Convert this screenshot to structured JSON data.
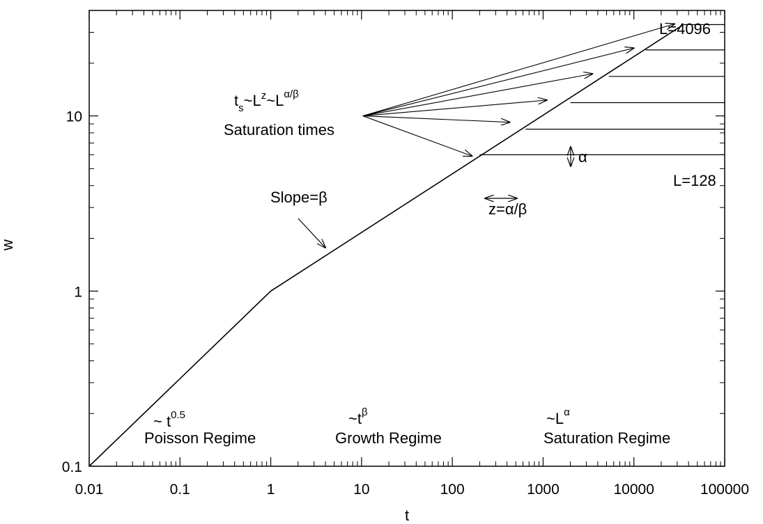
{
  "chart_data": {
    "type": "line",
    "title": "",
    "xlabel": "t",
    "ylabel": "w",
    "x_scale": "log",
    "y_scale": "log",
    "xlim": [
      0.01,
      100000
    ],
    "ylim": [
      0.1,
      40
    ],
    "grid": false,
    "x_ticks": [
      {
        "value": 0.01,
        "label": "0.01"
      },
      {
        "value": 0.1,
        "label": "0.1"
      },
      {
        "value": 1,
        "label": "1"
      },
      {
        "value": 10,
        "label": "10"
      },
      {
        "value": 100,
        "label": "100"
      },
      {
        "value": 1000,
        "label": "1000"
      },
      {
        "value": 10000,
        "label": "10000"
      },
      {
        "value": 100000,
        "label": "100000"
      }
    ],
    "y_ticks": [
      {
        "value": 0.1,
        "label": "0.1"
      },
      {
        "value": 1,
        "label": "1"
      },
      {
        "value": 10,
        "label": "10"
      }
    ],
    "growth_curve": {
      "x": [
        0.01,
        1,
        35000
      ],
      "y": [
        0.1,
        1,
        33.2
      ]
    },
    "saturation_lines": [
      {
        "w": 6.0,
        "t_start": 200
      },
      {
        "w": 8.4,
        "t_start": 640
      },
      {
        "w": 11.9,
        "t_start": 2000
      },
      {
        "w": 16.8,
        "t_start": 5300
      },
      {
        "w": 23.8,
        "t_start": 13500
      },
      {
        "w": 33.2,
        "t_start": 35000
      }
    ],
    "saturation_arrows": {
      "origin": {
        "t": 10,
        "w": 10
      },
      "targets": [
        {
          "t": 165,
          "w": 5.9
        },
        {
          "t": 430,
          "w": 9.2
        },
        {
          "t": 1100,
          "w": 12.3
        },
        {
          "t": 3500,
          "w": 17.4
        },
        {
          "t": 10000,
          "w": 24.4
        },
        {
          "t": 28000,
          "w": 33.5
        }
      ]
    },
    "annotations": {
      "top_line_label": "L=4096",
      "bottom_line_label": "L=128",
      "alpha_label": "α",
      "slope_label": "Slope=β",
      "z_label": "z=α/β",
      "saturation_times": "Saturation times",
      "ts_t": "t",
      "ts_s": "s",
      "ts_mid": "~L",
      "ts_z": "z",
      "ts_mid2": "~L",
      "ts_sup": "α/β",
      "poisson_tilde": "~ t",
      "poisson_sup": "0.5",
      "poisson_label": "Poisson Regime",
      "growth_tilde": "~t",
      "growth_sup": "β",
      "growth_label": "Growth Regime",
      "sat_tilde": "~L",
      "sat_sup": "α",
      "sat_label": "Saturation Regime"
    }
  }
}
